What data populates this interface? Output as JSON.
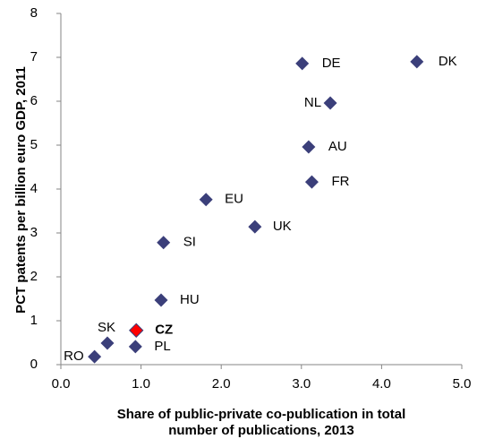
{
  "chart_data": {
    "type": "scatter",
    "x_label": "Share of public-private co-publication in total",
    "x_label_line2": "number of publications, 2013",
    "y_label": "PCT patents per billion euro GDP, 2011",
    "points": [
      {
        "label": "DK",
        "x": 4.44,
        "y": 6.9,
        "color": "#3b3f7a"
      },
      {
        "label": "DE",
        "x": 3.01,
        "y": 6.86,
        "color": "#3b3f7a"
      },
      {
        "label": "NL",
        "x": 3.36,
        "y": 5.96,
        "color": "#3b3f7a"
      },
      {
        "label": "AU",
        "x": 3.09,
        "y": 4.96,
        "color": "#3b3f7a"
      },
      {
        "label": "FR",
        "x": 3.13,
        "y": 4.16,
        "color": "#3b3f7a"
      },
      {
        "label": "EU",
        "x": 1.81,
        "y": 3.76,
        "color": "#3b3f7a"
      },
      {
        "label": "UK",
        "x": 2.42,
        "y": 3.14,
        "color": "#3b3f7a"
      },
      {
        "label": "SI",
        "x": 1.28,
        "y": 2.78,
        "color": "#3b3f7a"
      },
      {
        "label": "HU",
        "x": 1.25,
        "y": 1.47,
        "color": "#3b3f7a"
      },
      {
        "label": "CZ",
        "x": 0.94,
        "y": 0.78,
        "color": "#ff0000"
      },
      {
        "label": "SK",
        "x": 0.58,
        "y": 0.49,
        "color": "#3b3f7a"
      },
      {
        "label": "PL",
        "x": 0.93,
        "y": 0.41,
        "color": "#3b3f7a"
      },
      {
        "label": "RO",
        "x": 0.42,
        "y": 0.18,
        "color": "#3b3f7a"
      }
    ],
    "xlim": [
      0,
      5
    ],
    "xticks": [
      {
        "value": 0,
        "label": "0.0"
      },
      {
        "value": 1,
        "label": "1.0"
      },
      {
        "value": 2,
        "label": "2.0"
      },
      {
        "value": 3,
        "label": "3.0"
      },
      {
        "value": 4,
        "label": "4.0"
      },
      {
        "value": 5,
        "label": "5.0"
      }
    ],
    "ylim": [
      0,
      8
    ],
    "yticks": [
      0,
      1,
      2,
      3,
      4,
      5,
      6,
      7,
      8
    ]
  }
}
